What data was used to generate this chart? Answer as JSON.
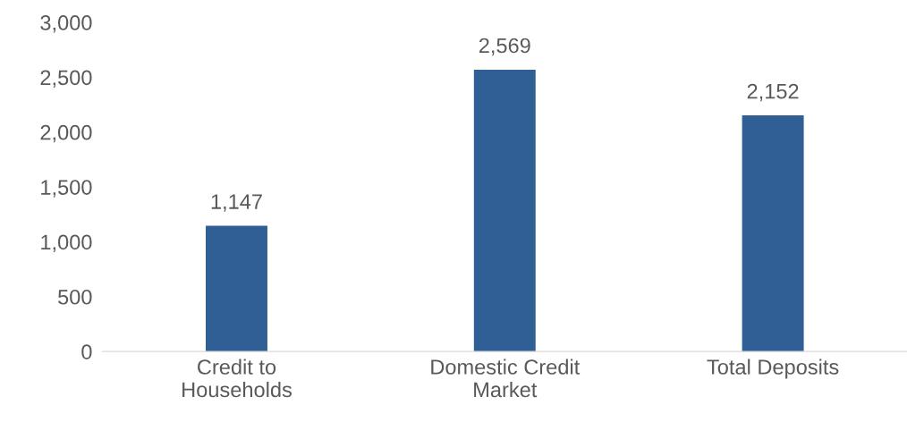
{
  "chart_data": {
    "type": "bar",
    "categories": [
      "Credit to Households",
      "Domestic Credit Market",
      "Total Deposits"
    ],
    "values": [
      1147,
      2569,
      2152
    ],
    "color": "#2f5f94",
    "ylim": [
      0,
      3000
    ],
    "yticks": [
      0,
      500,
      {
        "value": 1000,
        "label": "1,000"
      },
      {
        "value": 1500,
        "label": "1,500"
      },
      {
        "value": 2000,
        "label": "2,000"
      },
      {
        "value": 2500,
        "label": "2,500"
      },
      {
        "value": 3000,
        "label": "3,000"
      }
    ],
    "value_labels": [
      "1,147",
      "2,569",
      "2,152"
    ],
    "grid": false,
    "legend": false
  }
}
